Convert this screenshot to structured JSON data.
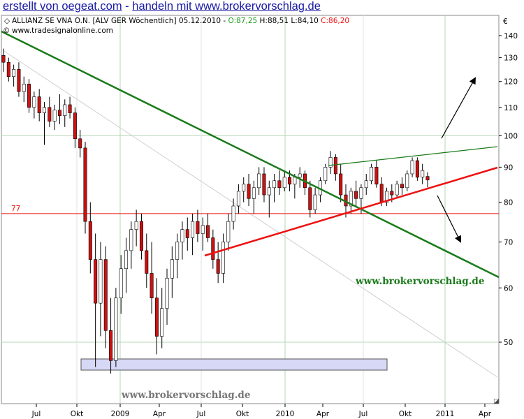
{
  "header": {
    "title_part1": "erstellt von oegeat.com",
    "separator": " - ",
    "title_part2": "handeln mit www.brokervorschlag.de"
  },
  "info": {
    "instrument": "ALLIANZ SE VNA O.N. [ALV GER  Wöchentlich]",
    "date": "05.12.2010",
    "open": "O:87,25",
    "high": "H:88,51",
    "low": "L:84,10",
    "close": "C:86,20",
    "source": "www.tradesignalonline.com"
  },
  "colors": {
    "header": "#1a1aa6",
    "bull_candle": "#ffffff",
    "bear_candle": "#cc1111",
    "downtrend": "#1a7a1a",
    "uptrend": "#e11",
    "hline": "#e11",
    "open_green": "#1a9a1a",
    "close_red": "#e11",
    "box": "#d6d8f5"
  },
  "chart_data": {
    "type": "candlestick",
    "currency_label": "€",
    "y_scale": "log",
    "ylim": [
      43,
      148
    ],
    "y_ticks": [
      "140",
      "130",
      "120",
      "110",
      "100",
      "90",
      "80",
      "70",
      "60",
      "50"
    ],
    "x_labels": [
      "Jul",
      "Okt",
      "2009",
      "Apr",
      "Jul",
      "Okt",
      "2010",
      "Apr",
      "Jul",
      "Okt",
      "2011",
      "Apr"
    ],
    "horizontal_line": {
      "value": 77,
      "label": "77"
    },
    "watermark1": "www.brokervorschlag.de",
    "watermark2": "www.brokervorschlag.de",
    "candles": [
      {
        "o": 131,
        "h": 134,
        "l": 124,
        "c": 128
      },
      {
        "o": 128,
        "h": 130,
        "l": 120,
        "c": 122
      },
      {
        "o": 122,
        "h": 127,
        "l": 118,
        "c": 125
      },
      {
        "o": 125,
        "h": 128,
        "l": 114,
        "c": 116
      },
      {
        "o": 116,
        "h": 122,
        "l": 112,
        "c": 119
      },
      {
        "o": 119,
        "h": 121,
        "l": 108,
        "c": 110
      },
      {
        "o": 110,
        "h": 116,
        "l": 106,
        "c": 114
      },
      {
        "o": 114,
        "h": 117,
        "l": 105,
        "c": 108
      },
      {
        "o": 108,
        "h": 112,
        "l": 97,
        "c": 110
      },
      {
        "o": 110,
        "h": 114,
        "l": 103,
        "c": 105
      },
      {
        "o": 105,
        "h": 111,
        "l": 102,
        "c": 109
      },
      {
        "o": 109,
        "h": 115,
        "l": 104,
        "c": 107
      },
      {
        "o": 107,
        "h": 113,
        "l": 103,
        "c": 111
      },
      {
        "o": 111,
        "h": 114,
        "l": 106,
        "c": 108
      },
      {
        "o": 108,
        "h": 110,
        "l": 96,
        "c": 99
      },
      {
        "o": 99,
        "h": 102,
        "l": 93,
        "c": 96
      },
      {
        "o": 96,
        "h": 98,
        "l": 72,
        "c": 75
      },
      {
        "o": 75,
        "h": 80,
        "l": 63,
        "c": 66
      },
      {
        "o": 66,
        "h": 72,
        "l": 46,
        "c": 57
      },
      {
        "o": 57,
        "h": 70,
        "l": 51,
        "c": 66
      },
      {
        "o": 66,
        "h": 69,
        "l": 49,
        "c": 52
      },
      {
        "o": 52,
        "h": 58,
        "l": 45,
        "c": 47
      },
      {
        "o": 47,
        "h": 60,
        "l": 46,
        "c": 58
      },
      {
        "o": 58,
        "h": 67,
        "l": 55,
        "c": 64
      },
      {
        "o": 64,
        "h": 71,
        "l": 59,
        "c": 68
      },
      {
        "o": 68,
        "h": 75,
        "l": 64,
        "c": 73
      },
      {
        "o": 73,
        "h": 78,
        "l": 69,
        "c": 75
      },
      {
        "o": 75,
        "h": 77,
        "l": 66,
        "c": 68
      },
      {
        "o": 68,
        "h": 72,
        "l": 60,
        "c": 63
      },
      {
        "o": 63,
        "h": 70,
        "l": 55,
        "c": 58
      },
      {
        "o": 58,
        "h": 62,
        "l": 48,
        "c": 51
      },
      {
        "o": 51,
        "h": 60,
        "l": 49,
        "c": 56
      },
      {
        "o": 56,
        "h": 64,
        "l": 53,
        "c": 62
      },
      {
        "o": 62,
        "h": 69,
        "l": 58,
        "c": 66
      },
      {
        "o": 66,
        "h": 72,
        "l": 62,
        "c": 70
      },
      {
        "o": 70,
        "h": 75,
        "l": 66,
        "c": 73
      },
      {
        "o": 73,
        "h": 76,
        "l": 68,
        "c": 71
      },
      {
        "o": 71,
        "h": 77,
        "l": 67,
        "c": 75
      },
      {
        "o": 75,
        "h": 78,
        "l": 70,
        "c": 72
      },
      {
        "o": 72,
        "h": 76,
        "l": 68,
        "c": 74
      },
      {
        "o": 74,
        "h": 77,
        "l": 70,
        "c": 71
      },
      {
        "o": 71,
        "h": 73,
        "l": 64,
        "c": 66
      },
      {
        "o": 66,
        "h": 70,
        "l": 61,
        "c": 63
      },
      {
        "o": 63,
        "h": 72,
        "l": 61,
        "c": 70
      },
      {
        "o": 70,
        "h": 77,
        "l": 68,
        "c": 75
      },
      {
        "o": 75,
        "h": 81,
        "l": 73,
        "c": 79
      },
      {
        "o": 79,
        "h": 85,
        "l": 77,
        "c": 83
      },
      {
        "o": 83,
        "h": 87,
        "l": 80,
        "c": 85
      },
      {
        "o": 85,
        "h": 88,
        "l": 79,
        "c": 81
      },
      {
        "o": 81,
        "h": 86,
        "l": 77,
        "c": 84
      },
      {
        "o": 84,
        "h": 90,
        "l": 82,
        "c": 88
      },
      {
        "o": 88,
        "h": 90,
        "l": 80,
        "c": 82
      },
      {
        "o": 82,
        "h": 86,
        "l": 76,
        "c": 84
      },
      {
        "o": 84,
        "h": 88,
        "l": 80,
        "c": 86
      },
      {
        "o": 86,
        "h": 89,
        "l": 82,
        "c": 84
      },
      {
        "o": 84,
        "h": 89,
        "l": 83,
        "c": 87
      },
      {
        "o": 87,
        "h": 89,
        "l": 83,
        "c": 85
      },
      {
        "o": 85,
        "h": 88,
        "l": 81,
        "c": 87
      },
      {
        "o": 87,
        "h": 90,
        "l": 84,
        "c": 88
      },
      {
        "o": 88,
        "h": 89,
        "l": 82,
        "c": 84
      },
      {
        "o": 84,
        "h": 86,
        "l": 76,
        "c": 78
      },
      {
        "o": 78,
        "h": 84,
        "l": 77,
        "c": 82
      },
      {
        "o": 82,
        "h": 87,
        "l": 80,
        "c": 86
      },
      {
        "o": 86,
        "h": 91,
        "l": 85,
        "c": 90
      },
      {
        "o": 90,
        "h": 95,
        "l": 88,
        "c": 93
      },
      {
        "o": 93,
        "h": 94,
        "l": 86,
        "c": 88
      },
      {
        "o": 88,
        "h": 91,
        "l": 80,
        "c": 82
      },
      {
        "o": 82,
        "h": 85,
        "l": 76,
        "c": 79
      },
      {
        "o": 79,
        "h": 84,
        "l": 77,
        "c": 83
      },
      {
        "o": 83,
        "h": 86,
        "l": 79,
        "c": 81
      },
      {
        "o": 81,
        "h": 85,
        "l": 77,
        "c": 84
      },
      {
        "o": 84,
        "h": 88,
        "l": 82,
        "c": 86
      },
      {
        "o": 86,
        "h": 91,
        "l": 85,
        "c": 90
      },
      {
        "o": 90,
        "h": 92,
        "l": 84,
        "c": 85
      },
      {
        "o": 85,
        "h": 87,
        "l": 79,
        "c": 80
      },
      {
        "o": 80,
        "h": 84,
        "l": 79,
        "c": 83
      },
      {
        "o": 83,
        "h": 85,
        "l": 80,
        "c": 82
      },
      {
        "o": 82,
        "h": 86,
        "l": 81,
        "c": 85
      },
      {
        "o": 85,
        "h": 87,
        "l": 82,
        "c": 84
      },
      {
        "o": 84,
        "h": 89,
        "l": 83,
        "c": 88
      },
      {
        "o": 88,
        "h": 93,
        "l": 87,
        "c": 92
      },
      {
        "o": 92,
        "h": 93,
        "l": 86,
        "c": 87
      },
      {
        "o": 87,
        "h": 91,
        "l": 85,
        "c": 89
      },
      {
        "o": 87.25,
        "h": 88.51,
        "l": 84.1,
        "c": 86.2
      }
    ]
  }
}
